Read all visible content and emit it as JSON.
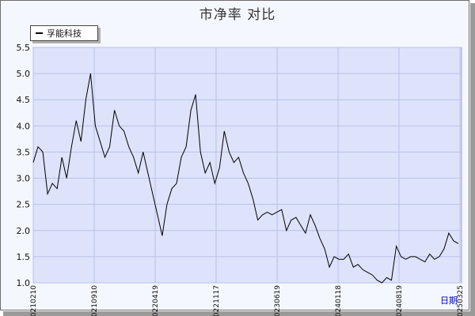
{
  "chart_data": {
    "type": "line",
    "title": "市净率  对比",
    "xlabel": "日期",
    "ylabel": "",
    "ylim": [
      1.0,
      5.5
    ],
    "yticks": [
      "1.0",
      "1.5",
      "2.0",
      "2.5",
      "3.0",
      "3.5",
      "4.0",
      "4.5",
      "5.0",
      "5.5"
    ],
    "xticks": [
      "20210210",
      "20210910",
      "20220419",
      "20221117",
      "20230619",
      "20240118",
      "20240819",
      "20250325"
    ],
    "legend_position": "top-left",
    "grid": true,
    "colors": {
      "plot_bg": "#dde3fa",
      "grid": "#b8c2e8",
      "line": "#000000"
    },
    "series": [
      {
        "name": "孚能科技",
        "x_index": [
          0,
          6,
          12,
          18,
          24,
          30,
          36,
          42,
          48,
          54,
          60,
          66,
          72,
          78,
          84,
          90,
          96,
          102,
          108,
          114,
          120,
          126,
          132,
          138,
          144,
          150,
          156,
          162,
          168,
          174,
          180,
          186,
          192,
          198,
          204,
          210,
          216,
          222,
          228,
          234,
          240,
          246,
          252,
          258,
          264,
          270,
          276,
          282,
          288,
          294,
          300,
          306,
          312,
          318,
          324,
          330,
          336,
          342,
          348,
          354,
          360,
          366,
          372,
          378,
          384,
          390,
          396,
          402,
          408,
          414,
          420,
          426,
          432,
          438,
          444,
          450,
          456,
          462,
          468,
          474,
          480,
          486,
          492,
          498,
          504,
          510,
          516,
          522,
          528,
          534
        ],
        "values": [
          3.3,
          3.6,
          3.5,
          2.7,
          2.9,
          2.8,
          3.4,
          3.0,
          3.6,
          4.1,
          3.7,
          4.5,
          5.0,
          4.0,
          3.7,
          3.4,
          3.6,
          4.3,
          4.0,
          3.9,
          3.6,
          3.4,
          3.1,
          3.5,
          3.1,
          2.7,
          2.3,
          1.9,
          2.5,
          2.8,
          2.9,
          3.4,
          3.6,
          4.3,
          4.6,
          3.5,
          3.1,
          3.3,
          2.9,
          3.2,
          3.9,
          3.5,
          3.3,
          3.4,
          3.1,
          2.9,
          2.6,
          2.2,
          2.3,
          2.35,
          2.3,
          2.35,
          2.4,
          2.0,
          2.2,
          2.25,
          2.1,
          1.95,
          2.3,
          2.1,
          1.85,
          1.65,
          1.3,
          1.5,
          1.45,
          1.45,
          1.55,
          1.3,
          1.35,
          1.25,
          1.2,
          1.15,
          1.05,
          1.0,
          1.1,
          1.05,
          1.7,
          1.5,
          1.45,
          1.5,
          1.5,
          1.45,
          1.4,
          1.55,
          1.45,
          1.5,
          1.65,
          1.95,
          1.8,
          1.75
        ]
      }
    ]
  }
}
